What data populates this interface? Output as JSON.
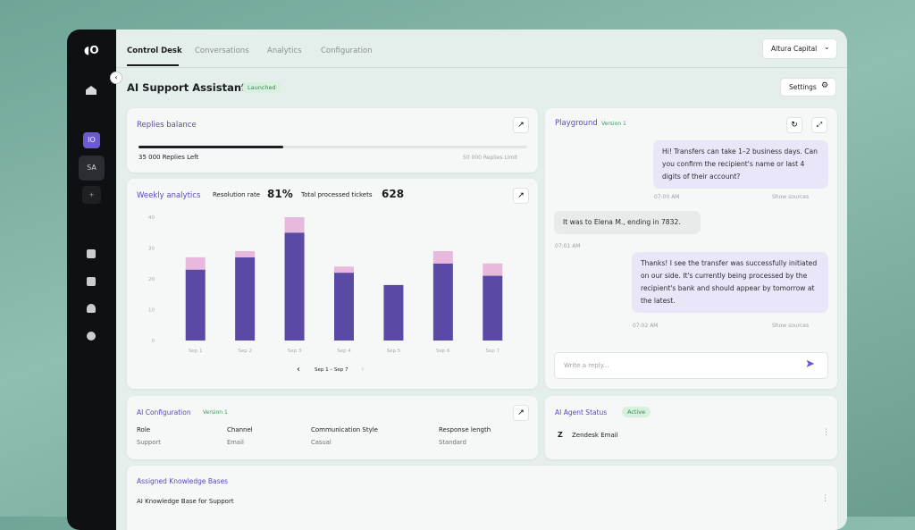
{
  "nav": {
    "tabs": [
      "Control Desk",
      "Conversations",
      "Analytics",
      "Configuration"
    ],
    "account": "Altura Capital",
    "workspace": "SA"
  },
  "header": {
    "title": "AI Support Assistant",
    "status": "Launched",
    "settings": "Settings"
  },
  "replies_balance": {
    "title": "Replies balance",
    "left": "35 000 Replies Left",
    "limit": "50 000 Replies Limit"
  },
  "weekly_analytics": {
    "title": "Weekly analytics",
    "resolution_label": "Resolution rate",
    "resolution_value": "81%",
    "tickets_label": "Total processed tickets",
    "tickets_value": "628",
    "range": "Sep 1 – Sep 7"
  },
  "chart_data": {
    "type": "bar",
    "stacked": true,
    "categories": [
      "Sep 1",
      "Sep 2",
      "Sep 3",
      "Sep 4",
      "Sep 5",
      "Sep 6",
      "Sep 7"
    ],
    "series": [
      {
        "color": "#5a4aa6",
        "values": [
          23,
          27,
          35,
          22,
          18,
          25,
          21
        ]
      },
      {
        "color": "#e9b9dd",
        "values": [
          4,
          2,
          5,
          2,
          0,
          4,
          4
        ]
      }
    ],
    "ylim": [
      0,
      40
    ],
    "yticks": [
      0,
      10,
      20,
      30,
      40
    ],
    "grid": false
  },
  "playground": {
    "title": "Playground",
    "version": "Version 1",
    "messages": [
      {
        "side": "right",
        "text": "Hi! Transfers can take 1–2 business days. Can you confirm the recipient's name or last 4 digits of their account?",
        "time": "07:00 AM",
        "sources": "Show sources"
      },
      {
        "side": "left",
        "text": "It was to Elena M., ending in 7832.",
        "time": "07:01 AM"
      },
      {
        "side": "right",
        "text": "Thanks! I see the transfer was successfully initiated on our side. It's currently being processed by the recipient's bank and should appear by tomorrow at the latest.",
        "time": "07:02 AM",
        "sources": "Show sources"
      }
    ],
    "placeholder": "Write a reply..."
  },
  "ai_configuration": {
    "title": "AI Configuration",
    "version": "Version 1",
    "fields": [
      {
        "label": "Role",
        "value": "Support"
      },
      {
        "label": "Channel",
        "value": "Email"
      },
      {
        "label": "Communication Style",
        "value": "Casual"
      },
      {
        "label": "Response length",
        "value": "Standard"
      }
    ]
  },
  "agent_status": {
    "title": "AI Agent Status",
    "status": "Active",
    "integration": "Zendesk Email"
  },
  "knowledge": {
    "title": "Assigned Knowledge Bases",
    "item": "AI Knowledge Base for Support"
  }
}
